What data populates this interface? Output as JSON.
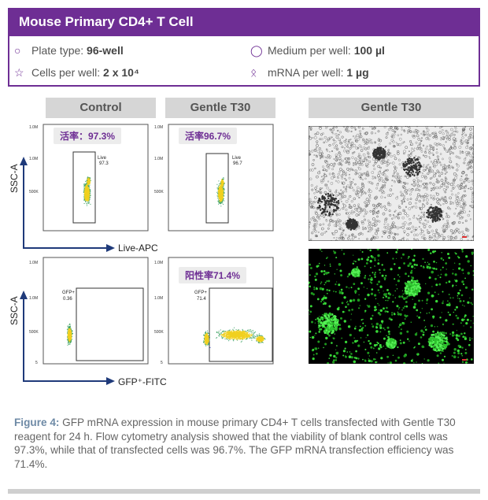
{
  "header": {
    "title": "Mouse Primary CD4+ T Cell"
  },
  "info": {
    "plate_label": "Plate type: ",
    "plate_value": "96-well",
    "medium_label": "Medium per well: ",
    "medium_value": "100 µl",
    "cells_label": "Cells per well: ",
    "cells_value": "2 x 10⁴",
    "mrna_label": "mRNA  per well: ",
    "mrna_value": "1 µg"
  },
  "columns": {
    "control": "Control",
    "gentle1": "Gentle T30",
    "gentle2": "Gentle T30"
  },
  "badges": {
    "viab_control": "活率：97.3%",
    "viab_gentle": "活率96.7%",
    "pos_gentle": "阳性率71.4%"
  },
  "axes": {
    "ssc": "SSC-A",
    "apc": "Live-APC",
    "fitc": "GFP⁺-FITC"
  },
  "plot_labels": {
    "live": "Live",
    "live_ctrl": "97.3",
    "live_gentle": "96.7",
    "gfp": "GFP+",
    "gfp_ctrl": "0.36",
    "gfp_gentle": "71.4"
  },
  "yticks": {
    "top": "1.0M",
    "mid": "500K",
    "q": "5"
  },
  "caption": {
    "fig": "Figure 4:",
    "text": " GFP mRNA  expression in mouse primary CD4+ T cells transfected with Gentle T30 reagent for 24 h. Flow cytometry analysis showed that the viability of blank control cells was 97.3%, while that of transfected cells was 96.7%. The GFP mRNA  transfection efficiency was 71.4%."
  },
  "colors": {
    "brand": "#6e2e94",
    "caption_fig": "#6e8aa6"
  }
}
